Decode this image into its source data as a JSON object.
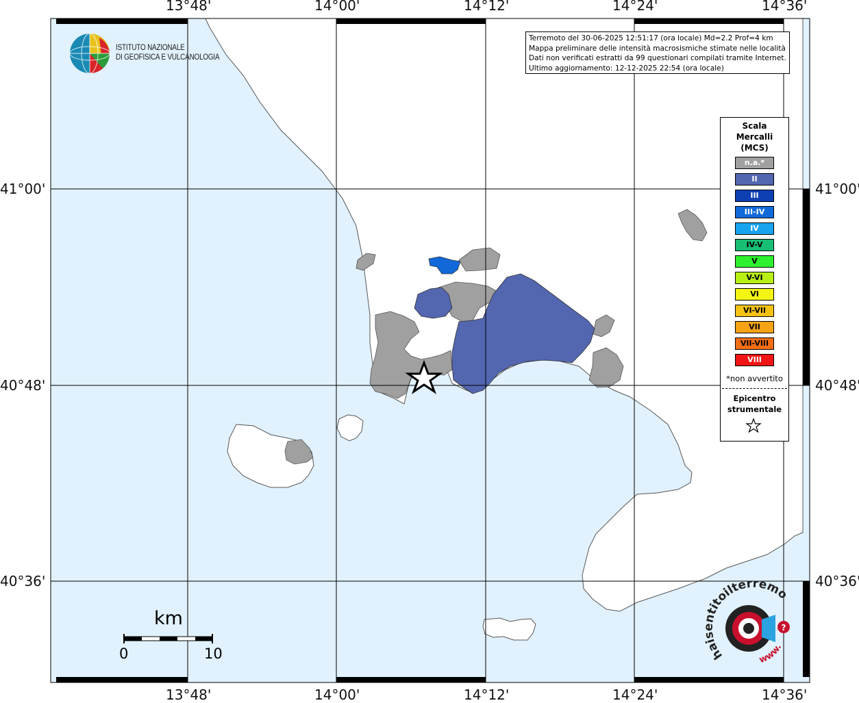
{
  "event_box": {
    "line1": "Terremoto del 30-06-2025 12:51:17 (ora locale) Md=2.2 Prof=4 km",
    "line2": "Mappa preliminare delle intensità macrosismiche stimate nelle località",
    "line3": "Dati non verificati estratti da 99 questionari compilati tramite Internet.",
    "line4": "Ultimo aggiornamento: 12-12-2025 22:54 (ora locale)"
  },
  "institute": {
    "line1": "ISTITUTO NAZIONALE",
    "line2": "DI GEOFISICA E VULCANOLOGIA"
  },
  "axes": {
    "top": [
      "13°48'",
      "14°00'",
      "14°12'",
      "14°24'",
      "14°36'"
    ],
    "bottom": [
      "13°48'",
      "14°00'",
      "14°12'",
      "14°24'",
      "14°36'"
    ],
    "left": [
      "41°00'",
      "40°48'",
      "40°36'"
    ],
    "right": [
      "41°00'",
      "40°48'",
      "40°36'"
    ]
  },
  "legend": {
    "title_lines": [
      "Scala",
      "Mercalli",
      "(MCS)"
    ],
    "items": [
      {
        "label": "n.a.*",
        "color": "#a0a0a0",
        "text_color": "#ffffff"
      },
      {
        "label": "II",
        "color": "#5366b0",
        "text_color": "#ffffff"
      },
      {
        "label": "III",
        "color": "#0e3fb3",
        "text_color": "#ffffff"
      },
      {
        "label": "III-IV",
        "color": "#1169d9",
        "text_color": "#ffffff"
      },
      {
        "label": "IV",
        "color": "#17a3ee",
        "text_color": "#ffffff"
      },
      {
        "label": "IV-V",
        "color": "#16bf74",
        "text_color": "#000000"
      },
      {
        "label": "V",
        "color": "#2ef02e",
        "text_color": "#000000"
      },
      {
        "label": "V-VI",
        "color": "#b8f015",
        "text_color": "#000000"
      },
      {
        "label": "VI",
        "color": "#f5f514",
        "text_color": "#000000"
      },
      {
        "label": "VI-VII",
        "color": "#f5c214",
        "text_color": "#000000"
      },
      {
        "label": "VII",
        "color": "#f5a214",
        "text_color": "#000000"
      },
      {
        "label": "VII-VIII",
        "color": "#f56e14",
        "text_color": "#000000"
      },
      {
        "label": "VIII",
        "color": "#f01414",
        "text_color": "#ffffff"
      }
    ],
    "not_felt_note": "*non avvertito",
    "epicenter_lines": [
      "Epicentro",
      "strumentale"
    ],
    "epicenter_symbol": "star"
  },
  "scale_bar": {
    "unit": "km",
    "start_label": "0",
    "end_label": "10"
  },
  "watermark": {
    "text": "haisentitoilterremoto.it",
    "www": "www."
  },
  "colors": {
    "sea": "#e1f1fd",
    "land": "#ffffff",
    "no_data": "#a0a0a0",
    "intensity_II": "#5366b0",
    "intensity_III_IV": "#1169d9"
  }
}
